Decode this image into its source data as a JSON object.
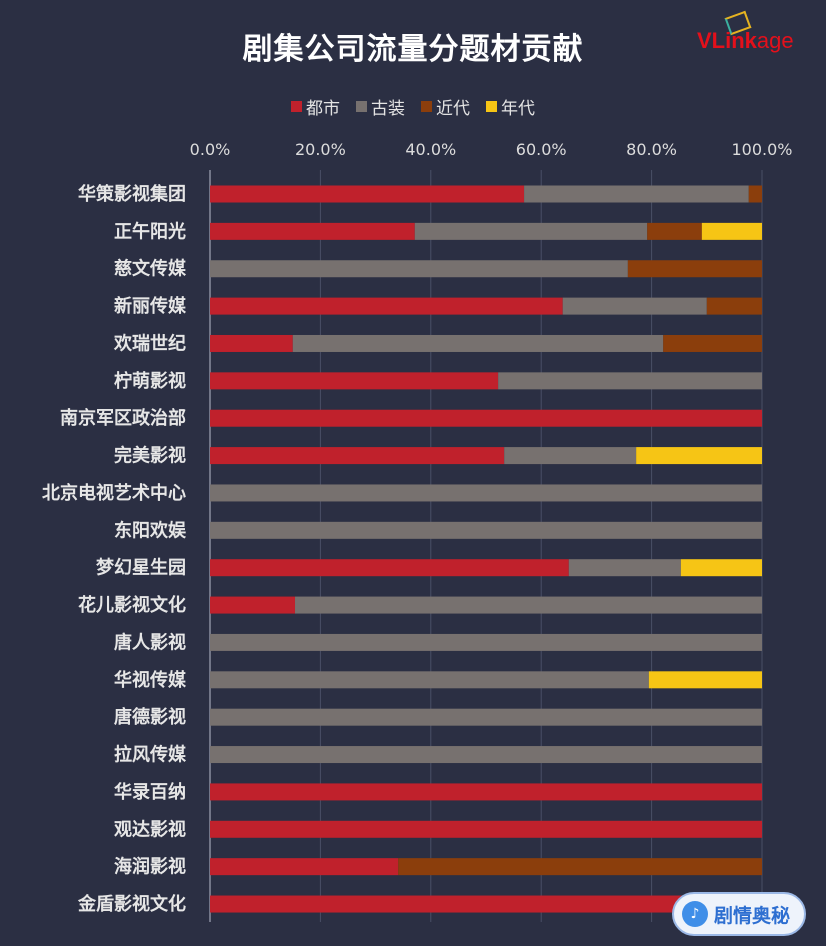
{
  "logo": {
    "text_bold": "VLink",
    "text_light": "age"
  },
  "watermark": {
    "text": "剧情奥秘"
  },
  "colors": {
    "都市": "#c0212c",
    "古装": "#77716f",
    "近代": "#8b3e0c",
    "年代": "#f6c515",
    "grid": "#4a4f66",
    "text": "#dcdcdc"
  },
  "chart_data": {
    "type": "bar",
    "orientation": "horizontal-stacked-100",
    "title": "剧集公司流量分题材贡献",
    "legend": [
      "都市",
      "古装",
      "近代",
      "年代"
    ],
    "legend_position": "top",
    "xlim": [
      0,
      100
    ],
    "xticks": [
      "0.0%",
      "20.0%",
      "40.0%",
      "60.0%",
      "80.0%",
      "100.0%"
    ],
    "grid": true,
    "categories": [
      "华策影视集团",
      "正午阳光",
      "慈文传媒",
      "新丽传媒",
      "欢瑞世纪",
      "柠萌影视",
      "南京军区政治部",
      "完美影视",
      "北京电视艺术中心",
      "东阳欢娱",
      "梦幻星生园",
      "花儿影视文化",
      "唐人影视",
      "华视传媒",
      "唐德影视",
      "拉风传媒",
      "华录百纳",
      "观达影视",
      "海润影视",
      "金盾影视文化"
    ],
    "series": [
      {
        "name": "都市",
        "values": [
          56.9,
          37.1,
          0,
          63.9,
          15.0,
          52.2,
          100,
          53.3,
          0,
          0,
          65.0,
          15.4,
          0,
          0,
          0,
          0,
          100,
          100,
          34.1,
          100
        ]
      },
      {
        "name": "古装",
        "values": [
          40.7,
          42.1,
          75.7,
          26.1,
          67.1,
          47.8,
          0,
          23.9,
          100,
          100,
          20.3,
          84.6,
          100,
          79.5,
          100,
          100,
          0,
          0,
          0,
          0
        ]
      },
      {
        "name": "近代",
        "values": [
          2.4,
          9.9,
          24.3,
          10.0,
          17.9,
          0,
          0,
          0,
          0,
          0,
          0,
          0,
          0,
          0,
          0,
          0,
          0,
          0,
          65.9,
          0
        ]
      },
      {
        "name": "年代",
        "values": [
          0,
          10.9,
          0,
          0,
          0,
          0,
          0,
          22.8,
          0,
          0,
          14.7,
          0,
          0,
          20.5,
          0,
          0,
          0,
          0,
          0,
          0
        ]
      }
    ]
  }
}
